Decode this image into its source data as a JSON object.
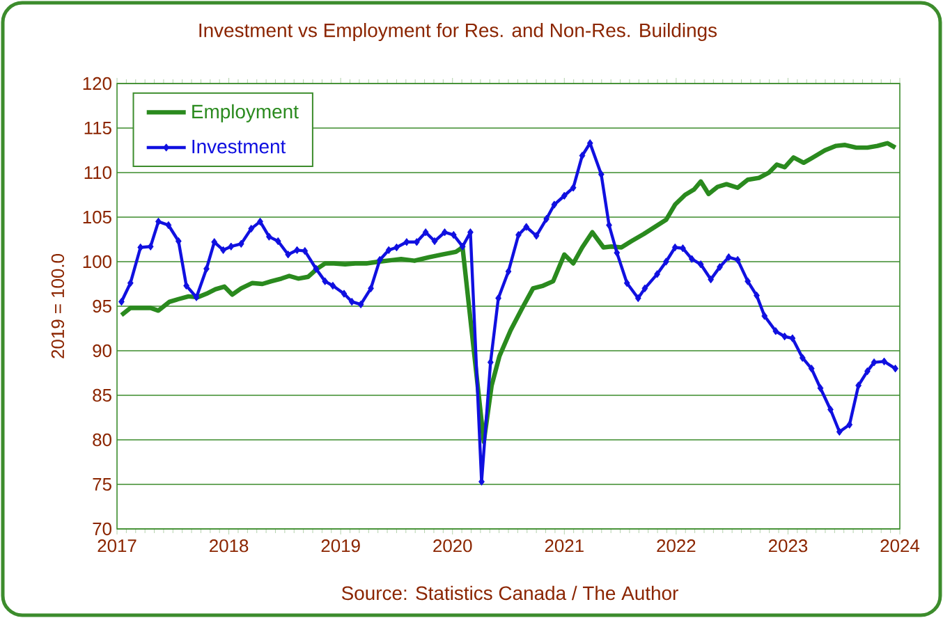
{
  "chart_data": {
    "type": "line",
    "title": "Investment vs Employment for Res. and Non-Res. Buildings",
    "ylabel": "2019 = 100.0",
    "annotations": [
      "Source: Statistics Canada / The Author"
    ],
    "xlim": [
      2017,
      2024
    ],
    "xticks": [
      2017,
      2018,
      2019,
      2020,
      2021,
      2022,
      2023,
      2024
    ],
    "ylim": [
      70,
      120
    ],
    "yticks": [
      70,
      75,
      80,
      85,
      90,
      95,
      100,
      105,
      110,
      115,
      120
    ],
    "grid": "y",
    "legend": "top left",
    "series": [
      {
        "name": "Employment",
        "color": "#2a8a1e",
        "marker": "none",
        "x": [
          2017.04,
          2017.12,
          2017.22,
          2017.3,
          2017.37,
          2017.47,
          2017.55,
          2017.64,
          2017.72,
          2017.8,
          2017.88,
          2017.96,
          2018.03,
          2018.11,
          2018.21,
          2018.3,
          2018.38,
          2018.47,
          2018.54,
          2018.62,
          2018.71,
          2018.79,
          2018.86,
          2018.94,
          2019.04,
          2019.13,
          2019.23,
          2019.34,
          2019.48,
          2019.54,
          2019.66,
          2019.79,
          2019.91,
          2020.03,
          2020.09,
          2020.28,
          2020.35,
          2020.42,
          2020.52,
          2020.62,
          2020.72,
          2020.81,
          2020.9,
          2021.0,
          2021.08,
          2021.16,
          2021.25,
          2021.35,
          2021.42,
          2021.51,
          2021.6,
          2021.71,
          2021.81,
          2021.91,
          2021.99,
          2022.08,
          2022.16,
          2022.22,
          2022.29,
          2022.37,
          2022.45,
          2022.55,
          2022.64,
          2022.74,
          2022.83,
          2022.9,
          2022.97,
          2023.05,
          2023.14,
          2023.21,
          2023.33,
          2023.43,
          2023.51,
          2023.61,
          2023.71,
          2023.8,
          2023.89,
          2023.96
        ],
        "values": [
          94.0,
          94.8,
          94.8,
          94.8,
          94.5,
          95.5,
          95.8,
          96.1,
          96.0,
          96.4,
          96.9,
          97.2,
          96.3,
          97.0,
          97.6,
          97.5,
          97.8,
          98.1,
          98.4,
          98.1,
          98.3,
          99.2,
          99.8,
          99.8,
          99.7,
          99.8,
          99.8,
          100.0,
          100.2,
          100.3,
          100.1,
          100.5,
          100.8,
          101.1,
          101.6,
          79.8,
          86.1,
          89.4,
          92.3,
          94.7,
          97.0,
          97.3,
          97.8,
          100.8,
          99.8,
          101.6,
          103.3,
          101.6,
          101.7,
          101.6,
          102.3,
          103.1,
          103.9,
          104.7,
          106.4,
          107.5,
          108.1,
          109.0,
          107.6,
          108.4,
          108.7,
          108.3,
          109.2,
          109.4,
          110.0,
          110.9,
          110.6,
          111.7,
          111.1,
          111.6,
          112.5,
          113.0,
          113.1,
          112.8,
          112.8,
          113.0,
          113.3,
          112.8
        ]
      },
      {
        "name": "Investment",
        "color": "#1010e0",
        "marker": "diamond",
        "x": [
          2017.04,
          2017.12,
          2017.21,
          2017.3,
          2017.37,
          2017.46,
          2017.55,
          2017.62,
          2017.71,
          2017.8,
          2017.87,
          2017.95,
          2018.02,
          2018.11,
          2018.2,
          2018.28,
          2018.36,
          2018.44,
          2018.53,
          2018.61,
          2018.68,
          2018.78,
          2018.86,
          2018.93,
          2019.03,
          2019.1,
          2019.18,
          2019.27,
          2019.35,
          2019.43,
          2019.5,
          2019.59,
          2019.68,
          2019.76,
          2019.84,
          2019.93,
          2020.01,
          2020.09,
          2020.16,
          2020.26,
          2020.34,
          2020.41,
          2020.5,
          2020.59,
          2020.66,
          2020.75,
          2020.84,
          2020.91,
          2021.0,
          2021.08,
          2021.16,
          2021.23,
          2021.33,
          2021.4,
          2021.47,
          2021.56,
          2021.66,
          2021.72,
          2021.83,
          2021.91,
          2021.99,
          2022.06,
          2022.14,
          2022.22,
          2022.31,
          2022.39,
          2022.47,
          2022.55,
          2022.64,
          2022.72,
          2022.79,
          2022.89,
          2022.97,
          2023.04,
          2023.13,
          2023.21,
          2023.29,
          2023.38,
          2023.46,
          2023.55,
          2023.63,
          2023.71,
          2023.77,
          2023.86,
          2023.96
        ],
        "values": [
          95.5,
          97.6,
          101.6,
          101.7,
          104.5,
          104.1,
          102.3,
          97.3,
          96.0,
          99.2,
          102.2,
          101.3,
          101.7,
          102.0,
          103.7,
          104.5,
          102.8,
          102.3,
          100.8,
          101.3,
          101.2,
          99.2,
          97.8,
          97.3,
          96.4,
          95.5,
          95.2,
          97.0,
          100.2,
          101.3,
          101.6,
          102.2,
          102.2,
          103.3,
          102.3,
          103.3,
          103.0,
          101.7,
          103.3,
          75.3,
          88.7,
          95.9,
          98.9,
          103.0,
          103.9,
          102.9,
          104.8,
          106.4,
          107.4,
          108.3,
          111.9,
          113.3,
          109.8,
          104.1,
          101.0,
          97.6,
          95.9,
          97.0,
          98.6,
          100.0,
          101.6,
          101.5,
          100.3,
          99.7,
          98.0,
          99.4,
          100.5,
          100.2,
          97.8,
          96.2,
          93.9,
          92.2,
          91.6,
          91.4,
          89.2,
          88.0,
          85.8,
          83.4,
          80.9,
          81.7,
          86.1,
          87.7,
          88.7,
          88.8,
          88.0
        ]
      }
    ]
  }
}
